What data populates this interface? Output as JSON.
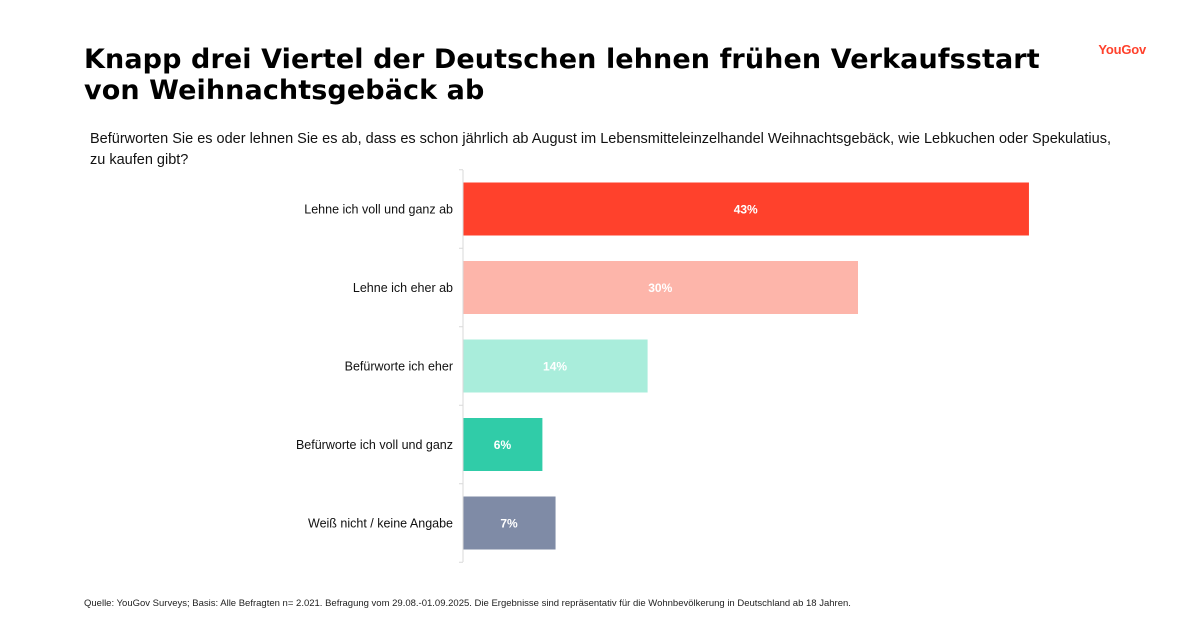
{
  "header": {
    "title": "Knapp drei Viertel der Deutschen lehnen frühen Verkaufsstart von Weihnachtsgebäck ab",
    "logo_text": "YouGov",
    "logo_color": "#ff412c",
    "question": "Befürworten Sie es oder lehnen Sie es ab, dass es schon jährlich ab August im Lebensmitteleinzelhandel Weihnachtsgebäck, wie Lebkuchen oder Spekulatius, zu kaufen gibt?"
  },
  "chart_data": {
    "type": "bar",
    "orientation": "horizontal",
    "categories": [
      "Lehne ich voll und ganz ab",
      "Lehne ich eher ab",
      "Befürworte ich eher",
      "Befürworte ich voll und ganz",
      "Weiß nicht / keine Angabe"
    ],
    "values": [
      43,
      30,
      14,
      6,
      7
    ],
    "value_labels": [
      "43%",
      "30%",
      "14%",
      "6%",
      "7%"
    ],
    "colors": [
      "#ff412c",
      "#fdb5aa",
      "#a9eddb",
      "#30cca8",
      "#7f8ba6"
    ],
    "unit": "%",
    "grid": false,
    "legend": "none"
  },
  "footer": {
    "source": "Quelle: YouGov Surveys; Basis: Alle Befragten n= 2.021. Befragung vom 29.08.-01.09.2025. Die Ergebnisse sind repräsentativ für die Wohnbevölkerung in Deutschland ab 18 Jahren."
  }
}
